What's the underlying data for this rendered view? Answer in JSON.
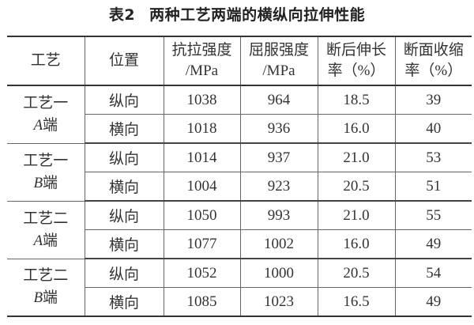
{
  "title": {
    "label": "表2",
    "text": "两种工艺两端的横纵向拉伸性能"
  },
  "headers": [
    {
      "line1": "工艺",
      "line2": ""
    },
    {
      "line1": "位置",
      "line2": ""
    },
    {
      "line1": "抗拉强度",
      "line2": "/MPa"
    },
    {
      "line1": "屈服强度",
      "line2": "/MPa"
    },
    {
      "line1": "断后伸长",
      "line2": "率（%）"
    },
    {
      "line1": "断面收缩",
      "line2": "率（%）"
    }
  ],
  "groups": [
    {
      "line1": "工艺一",
      "end_letter": "A",
      "end_suffix": "端",
      "rows": [
        {
          "position": "纵向",
          "tensile": "1038",
          "yield": "964",
          "elongation": "18.5",
          "reduction": "39"
        },
        {
          "position": "横向",
          "tensile": "1018",
          "yield": "936",
          "elongation": "16.0",
          "reduction": "40"
        }
      ]
    },
    {
      "line1": "工艺一",
      "end_letter": "B",
      "end_suffix": "端",
      "rows": [
        {
          "position": "纵向",
          "tensile": "1014",
          "yield": "937",
          "elongation": "21.0",
          "reduction": "53"
        },
        {
          "position": "横向",
          "tensile": "1004",
          "yield": "923",
          "elongation": "20.5",
          "reduction": "51"
        }
      ]
    },
    {
      "line1": "工艺二",
      "end_letter": "A",
      "end_suffix": "端",
      "rows": [
        {
          "position": "纵向",
          "tensile": "1050",
          "yield": "993",
          "elongation": "21.0",
          "reduction": "55"
        },
        {
          "position": "横向",
          "tensile": "1077",
          "yield": "1002",
          "elongation": "16.0",
          "reduction": "49"
        }
      ]
    },
    {
      "line1": "工艺二",
      "end_letter": "B",
      "end_suffix": "端",
      "rows": [
        {
          "position": "纵向",
          "tensile": "1052",
          "yield": "1000",
          "elongation": "20.5",
          "reduction": "54"
        },
        {
          "position": "横向",
          "tensile": "1085",
          "yield": "1023",
          "elongation": "16.5",
          "reduction": "49"
        }
      ]
    }
  ]
}
